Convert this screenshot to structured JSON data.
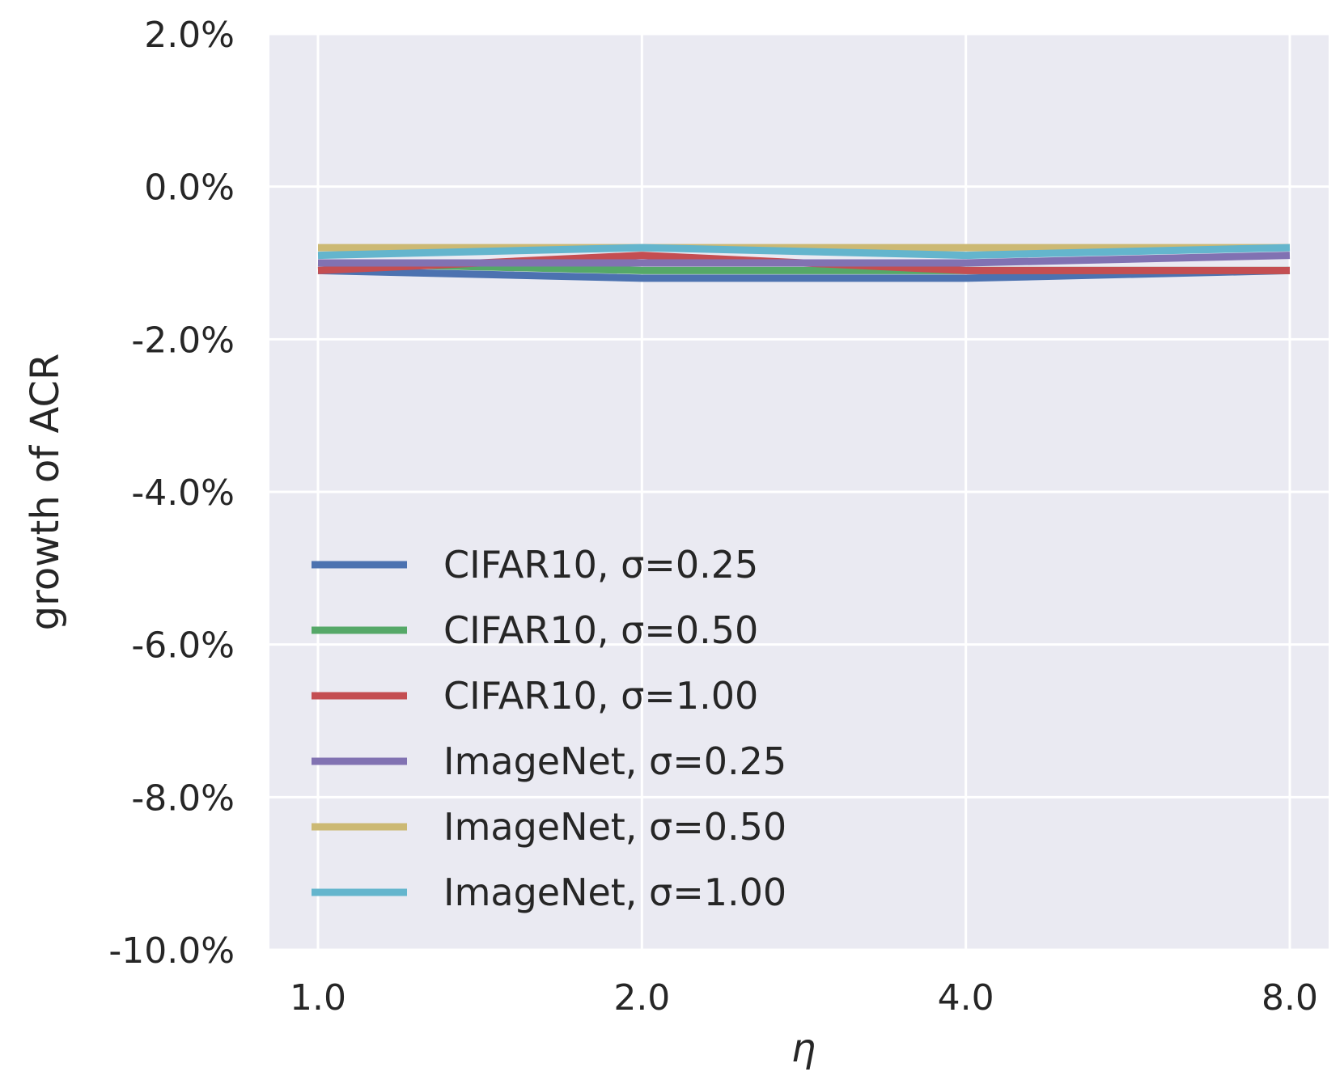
{
  "chart_data": {
    "type": "line",
    "x": [
      "1.0",
      "2.0",
      "4.0",
      "8.0"
    ],
    "xlabel": "η",
    "ylabel": "growth of ACR",
    "ylim": [
      -10.0,
      2.0
    ],
    "yticks": [
      "2.0%",
      "0.0%",
      "-2.0%",
      "-4.0%",
      "-6.0%",
      "-8.0%",
      "-10.0%"
    ],
    "grid": true,
    "legend_position": "lower-left",
    "series": [
      {
        "name": "CIFAR10, σ=0.25",
        "color": "#4c72b0",
        "values": [
          -1.1,
          -1.2,
          -1.2,
          -1.1
        ]
      },
      {
        "name": "CIFAR10, σ=0.50",
        "color": "#55a868",
        "values": [
          -1.0,
          -1.1,
          -1.1,
          -1.1
        ]
      },
      {
        "name": "CIFAR10, σ=1.00",
        "color": "#c44e52",
        "values": [
          -1.1,
          -0.9,
          -1.1,
          -1.1
        ]
      },
      {
        "name": "ImageNet, σ=0.25",
        "color": "#8172b2",
        "values": [
          -1.0,
          -1.0,
          -1.0,
          -0.9
        ]
      },
      {
        "name": "ImageNet, σ=0.50",
        "color": "#ccb974",
        "values": [
          -0.8,
          -0.8,
          -0.8,
          -0.8
        ]
      },
      {
        "name": "ImageNet, σ=1.00",
        "color": "#64b5cd",
        "values": [
          -0.9,
          -0.8,
          -0.9,
          -0.8
        ]
      }
    ]
  }
}
